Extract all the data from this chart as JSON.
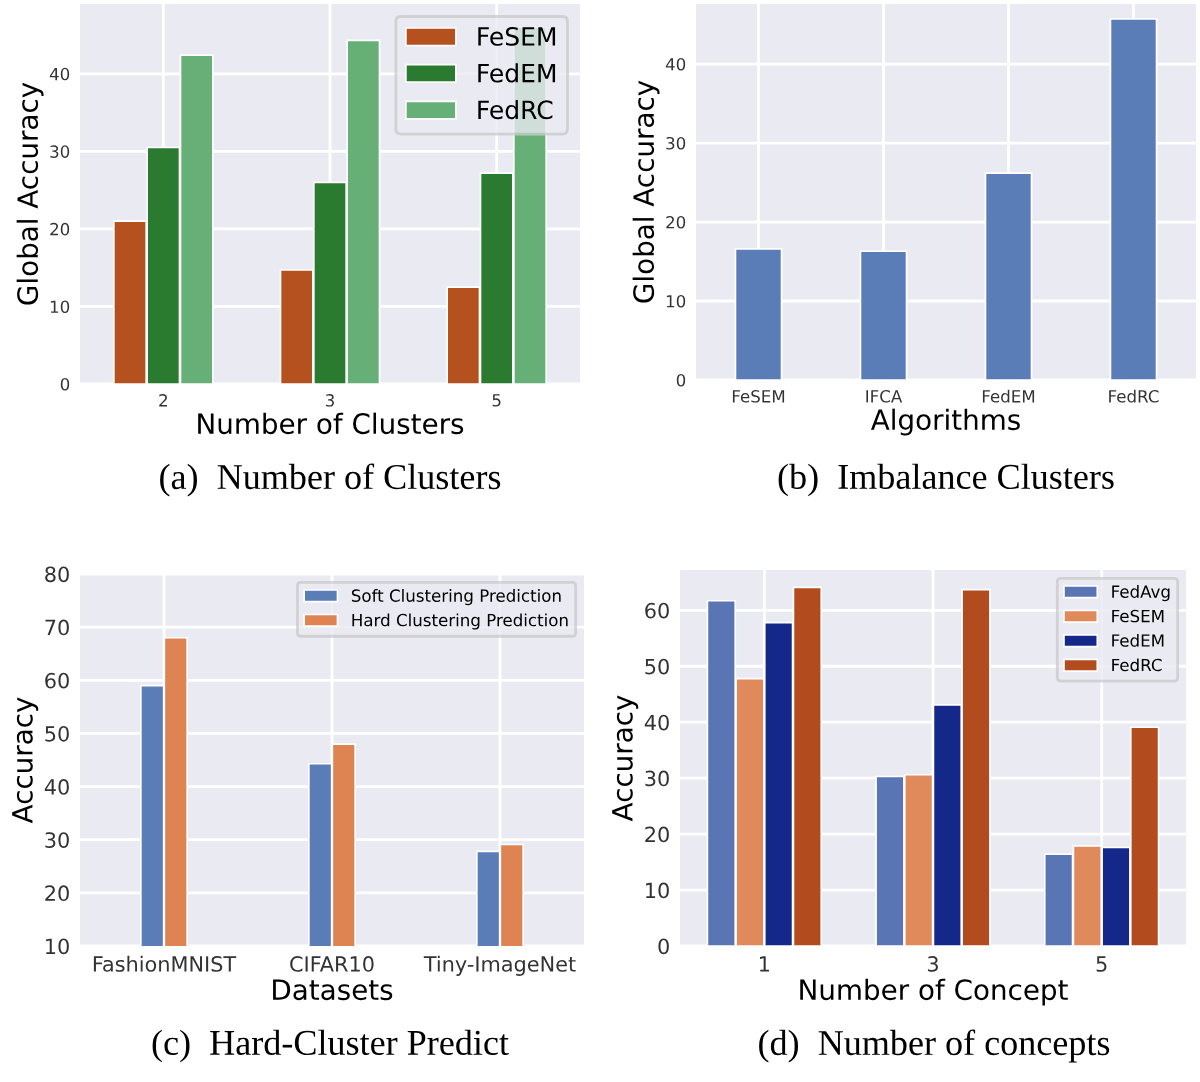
{
  "chart_data": [
    {
      "type": "bar",
      "title": "(a)  Number of Clusters",
      "xlabel": "Number of Clusters",
      "ylabel": "Global Accuracy",
      "categories": [
        "2",
        "3",
        "5"
      ],
      "ylim": [
        0,
        49
      ],
      "yticks": [
        0,
        10,
        20,
        30,
        40
      ],
      "grid": true,
      "legend": "top right",
      "series": [
        {
          "name": "FeSEM",
          "color": "#b5501f",
          "values": [
            21,
            14.7,
            12.5
          ]
        },
        {
          "name": "FedEM",
          "color": "#2a7a2f",
          "values": [
            30.5,
            26,
            27.2
          ]
        },
        {
          "name": "FedRC",
          "color": "#66b077",
          "values": [
            42.4,
            44.3,
            46
          ]
        }
      ]
    },
    {
      "type": "bar",
      "title": "(b)  Imbalance Clusters",
      "xlabel": "Algorithms",
      "ylabel": "Global Accuracy",
      "categories": [
        "FeSEM",
        "IFCA",
        "FedEM",
        "FedRC"
      ],
      "ylim": [
        0,
        47.6
      ],
      "yticks": [
        0,
        10,
        20,
        30,
        40
      ],
      "grid": true,
      "series": [
        {
          "color": "#5a7db8",
          "values": [
            16.6,
            16.3,
            26.2,
            45.7
          ]
        }
      ]
    },
    {
      "type": "bar",
      "title": "(c)  Hard-Cluster Predict",
      "xlabel": "Datasets",
      "ylabel": "Accuracy",
      "categories": [
        "FashionMNIST",
        "CIFAR10",
        "Tiny-ImageNet"
      ],
      "ylim": [
        10,
        80
      ],
      "yticks": [
        10,
        20,
        30,
        40,
        50,
        60,
        70,
        80
      ],
      "grid": true,
      "legend": "top right",
      "series": [
        {
          "name": "Soft Clustering Prediction",
          "color": "#5a7db8",
          "values": [
            59,
            44.3,
            27.8
          ]
        },
        {
          "name": "Hard Clustering Prediction",
          "color": "#dd8452",
          "values": [
            68,
            48,
            29.1
          ]
        }
      ]
    },
    {
      "type": "bar",
      "title": "(d)  Number of concepts",
      "xlabel": "Number of Concept",
      "ylabel": "Accuracy",
      "categories": [
        "1",
        "3",
        "5"
      ],
      "ylim": [
        0,
        67.2
      ],
      "yticks": [
        0,
        10,
        20,
        30,
        40,
        50,
        60
      ],
      "grid": true,
      "legend": "top right",
      "series": [
        {
          "name": "FedAvg",
          "color": "#5975b4",
          "values": [
            61.7,
            30.3,
            16.4
          ]
        },
        {
          "name": "FeSEM",
          "color": "#e0895a",
          "values": [
            47.8,
            30.6,
            17.9
          ]
        },
        {
          "name": "FedEM",
          "color": "#14288a",
          "values": [
            57.8,
            43.1,
            17.6
          ]
        },
        {
          "name": "FedRC",
          "color": "#b24c1f",
          "values": [
            64.1,
            63.7,
            39.1
          ]
        }
      ]
    }
  ]
}
